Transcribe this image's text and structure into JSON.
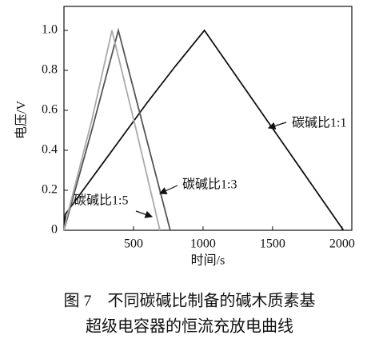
{
  "chart_data": {
    "type": "line",
    "x_label": "时间/s",
    "y_label": "电压/V",
    "xlim": [
      0,
      2070
    ],
    "ylim": [
      0,
      1.12
    ],
    "xticks": [
      500,
      1000,
      1500,
      2000
    ],
    "yticks": [
      0,
      0.2,
      0.4,
      0.6,
      0.8,
      {
        "value": 1.0,
        "label": "1.0"
      }
    ],
    "series": [
      {
        "name": "碳碱比1:1",
        "color": "#111111",
        "x": [
          0,
          10,
          200,
          400,
          600,
          800,
          1010,
          1200,
          1400,
          1600,
          1800,
          2010
        ],
        "values": [
          0,
          0.08,
          0.26,
          0.45,
          0.64,
          0.82,
          1.0,
          0.81,
          0.61,
          0.41,
          0.21,
          0
        ]
      },
      {
        "name": "碳碱比1:3",
        "color": "#555555",
        "x": [
          0,
          20,
          200,
          391,
          600,
          764
        ],
        "values": [
          0,
          0.05,
          0.5,
          1.0,
          0.44,
          0
        ]
      },
      {
        "name": "碳碱比1:5",
        "color": "#aaaaaa",
        "x": [
          0,
          15,
          200,
          345,
          520,
          690
        ],
        "values": [
          0,
          0.05,
          0.55,
          1.0,
          0.5,
          0
        ]
      }
    ],
    "caption": [
      "图 7　不同碳碱比制备的碱木质素基",
      "超级电容器的恒流充放电曲线"
    ]
  }
}
